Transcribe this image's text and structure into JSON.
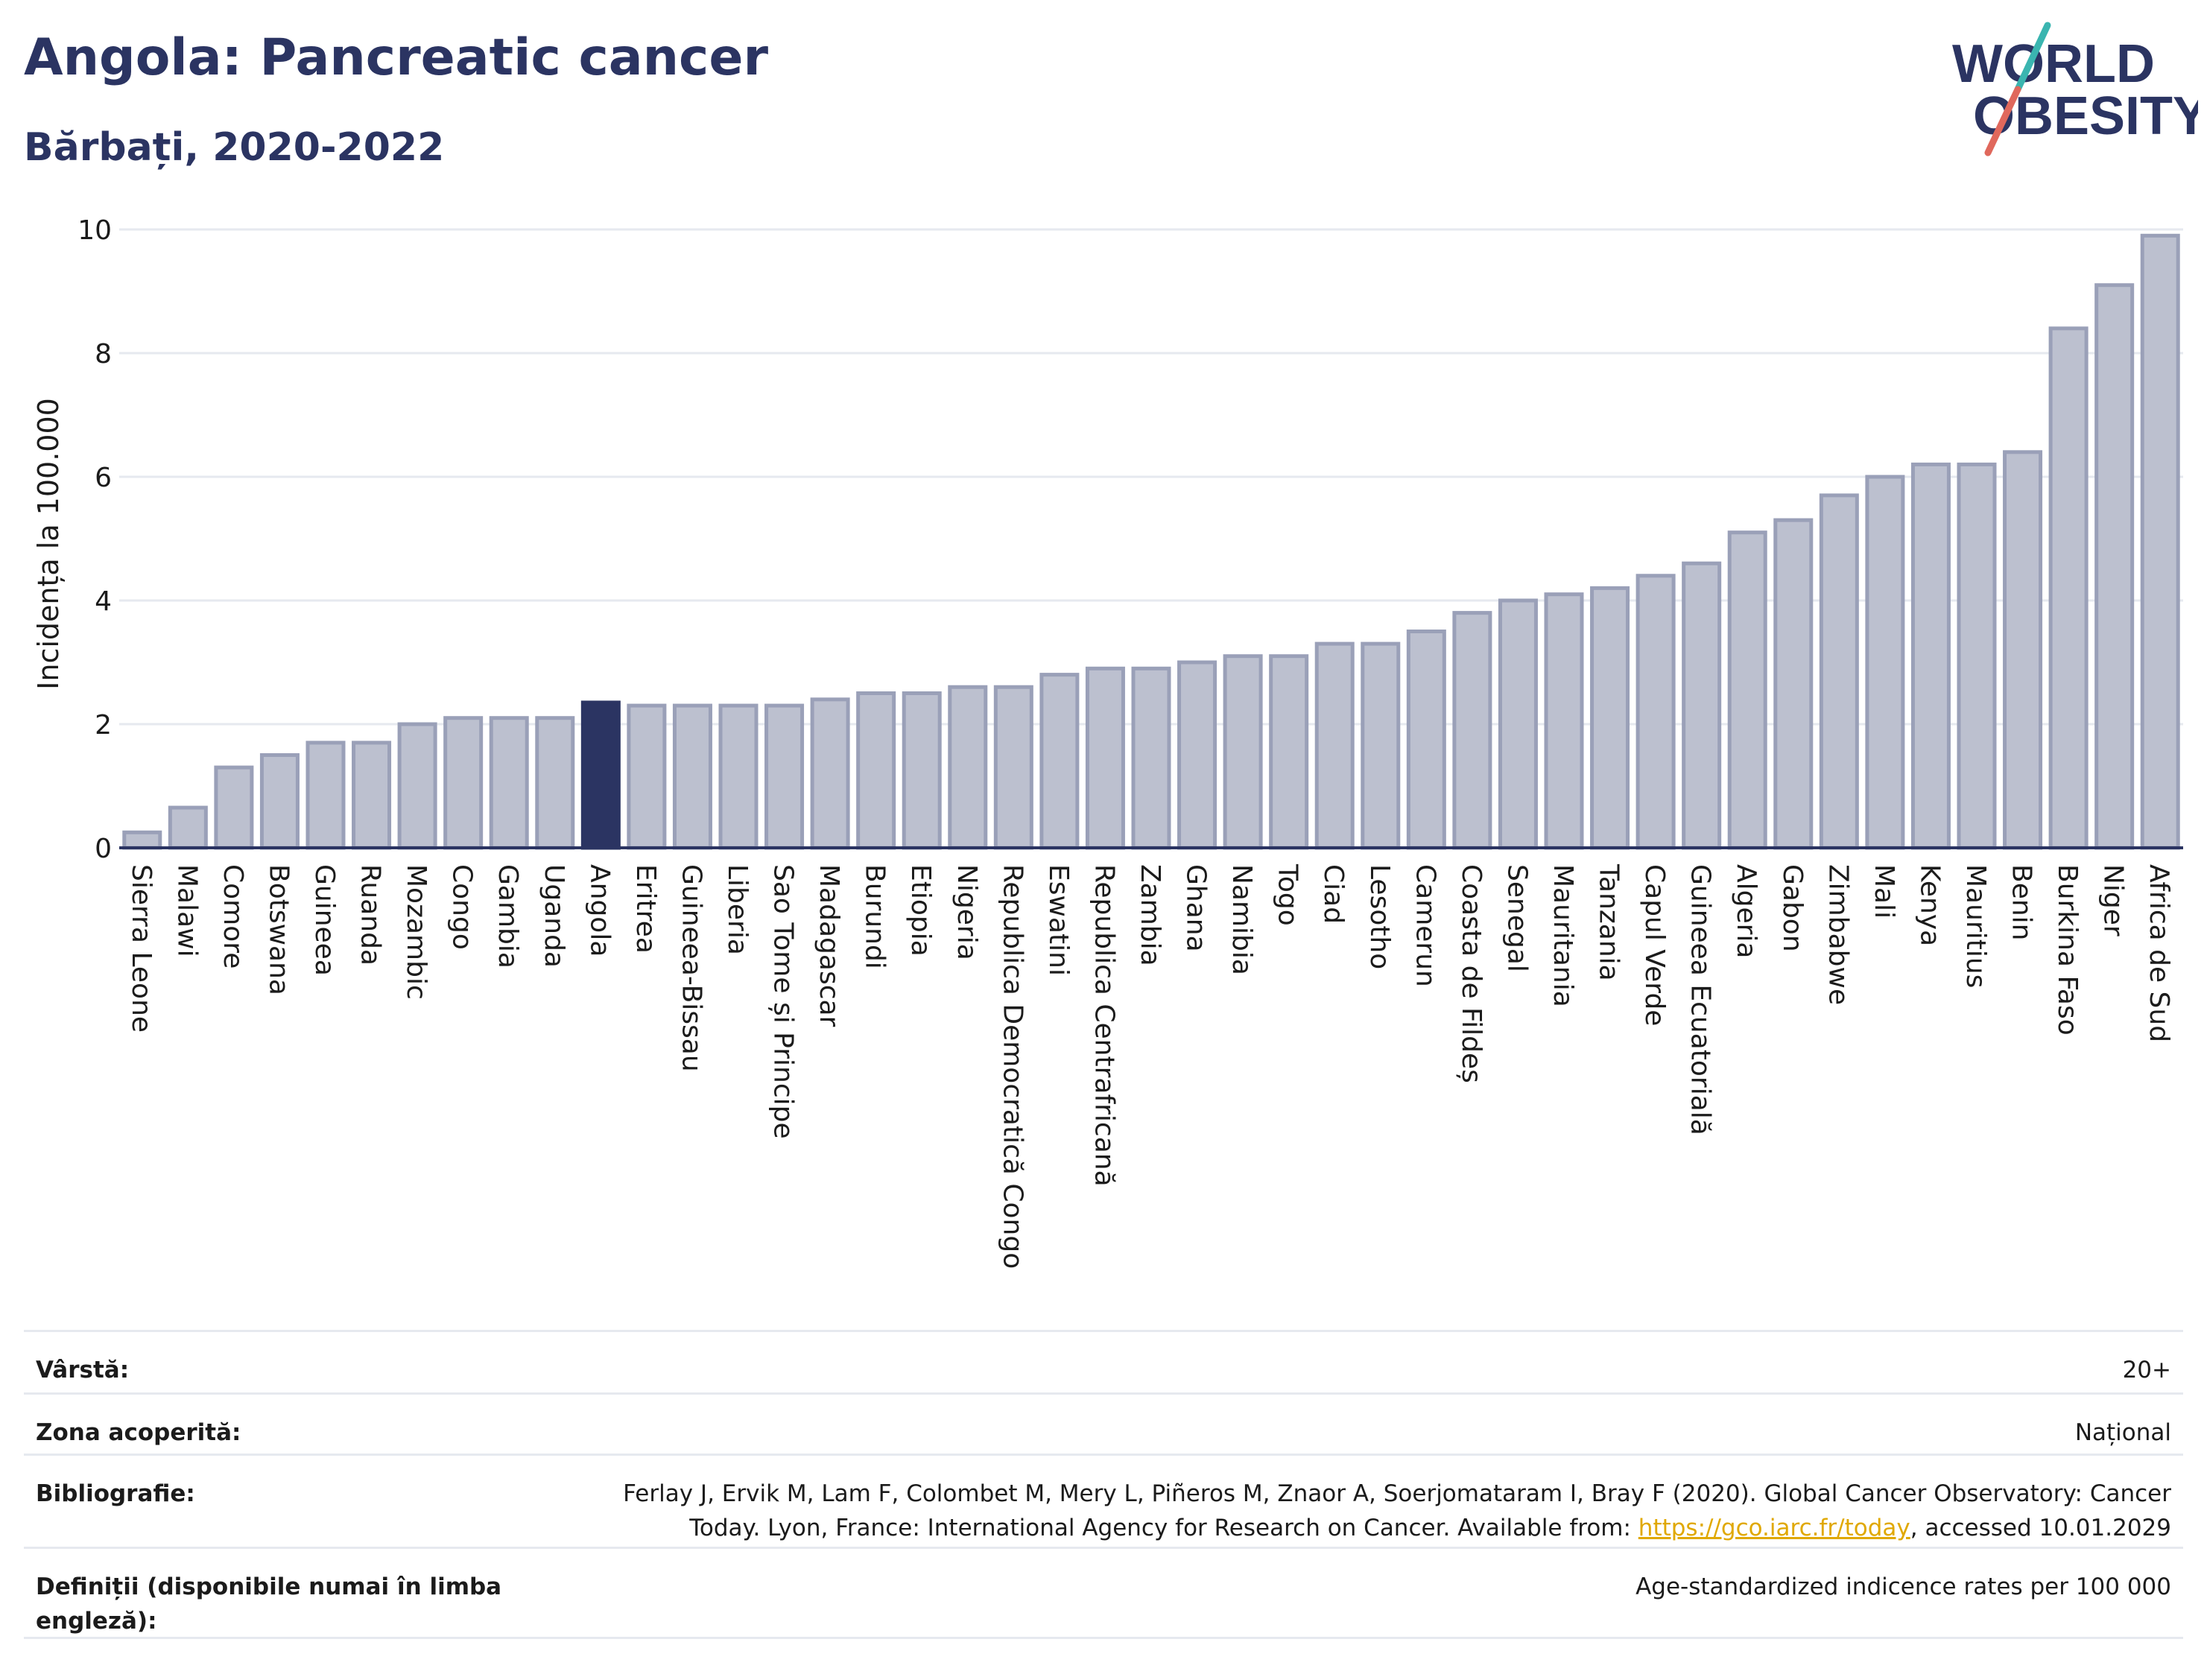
{
  "header": {
    "title": "Angola: Pancreatic cancer",
    "subtitle": "Bărbați, 2020-2022"
  },
  "logo": {
    "line1": "WORLD",
    "line2": "OBESITY",
    "accent_teal": "#3ab5b0",
    "accent_red": "#e0685c",
    "text_color": "#2b3462"
  },
  "colors": {
    "bar": "#bcc0cf",
    "bar_border": "#9aa0b8",
    "highlight": "#2b3462",
    "grid": "#e6e9ef",
    "axis": "#2b3462"
  },
  "chart_data": {
    "type": "bar",
    "ylabel": "Incidența la 100.000",
    "ylim": [
      0,
      10
    ],
    "yticks": [
      0,
      2,
      4,
      6,
      8,
      10
    ],
    "highlight": "Angola",
    "grid": true,
    "categories": [
      "Sierra Leone",
      "Malawi",
      "Comore",
      "Botswana",
      "Guineea",
      "Ruanda",
      "Mozambic",
      "Congo",
      "Gambia",
      "Uganda",
      "Angola",
      "Eritrea",
      "Guineea-Bissau",
      "Liberia",
      "Sao Tome și Principe",
      "Madagascar",
      "Burundi",
      "Etiopia",
      "Nigeria",
      "Republica Democratică Congo",
      "Eswatini",
      "Republica Centrafricană",
      "Zambia",
      "Ghana",
      "Namibia",
      "Togo",
      "Ciad",
      "Lesotho",
      "Camerun",
      "Coasta de Fildeș",
      "Senegal",
      "Mauritania",
      "Tanzania",
      "Capul Verde",
      "Guineea Ecuatorială",
      "Algeria",
      "Gabon",
      "Zimbabwe",
      "Mali",
      "Kenya",
      "Mauritius",
      "Benin",
      "Burkina Faso",
      "Niger",
      "Africa de Sud"
    ],
    "values": [
      0.25,
      0.65,
      1.3,
      1.5,
      1.7,
      1.7,
      2.0,
      2.1,
      2.1,
      2.1,
      2.35,
      2.3,
      2.3,
      2.3,
      2.3,
      2.4,
      2.5,
      2.5,
      2.6,
      2.6,
      2.8,
      2.9,
      2.9,
      3.0,
      3.1,
      3.1,
      3.3,
      3.3,
      3.5,
      3.8,
      4.0,
      4.1,
      4.2,
      4.4,
      4.6,
      5.1,
      5.3,
      5.7,
      6.0,
      6.2,
      6.2,
      6.4,
      8.4,
      9.1,
      9.9
    ]
  },
  "meta": {
    "age_label": "Vârstă:",
    "age_value": "20+",
    "area_label": "Zona acoperită:",
    "area_value": "Național",
    "bib_label": "Bibliografie:",
    "bib_line1": "Ferlay J, Ervik M, Lam F, Colombet M, Mery L, Piñeros M, Znaor A, Soerjomataram I, Bray F (2020). Global Cancer Observatory: Cancer",
    "bib_line2_pre": "Today. Lyon, France: International Agency for Research on Cancer. Available from: ",
    "bib_link": "https://gco.iarc.fr/today",
    "bib_line2_post": ", accessed 10.01.2029",
    "def_label": "Definiții (disponibile numai în limba engleză):",
    "def_value": "Age-standardized indicence rates per 100 000"
  }
}
